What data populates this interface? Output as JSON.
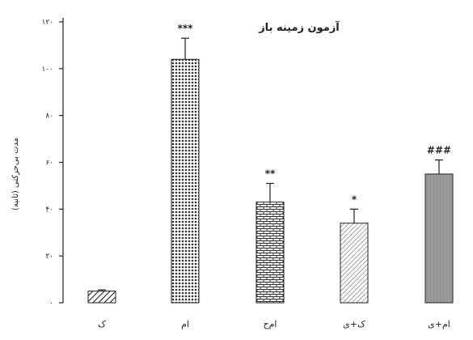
{
  "chart_data": {
    "type": "bar",
    "title": "آزمون زمینه باز",
    "ylabel": "(مدت بی‌حرکتی (ثانیه",
    "ylim": [
      0,
      120
    ],
    "yticks": [
      {
        "value": 0,
        "label": "۰"
      },
      {
        "value": 20,
        "label": "۲۰"
      },
      {
        "value": 40,
        "label": "۴۰"
      },
      {
        "value": 60,
        "label": "۶۰"
      },
      {
        "value": 80,
        "label": "۸۰"
      },
      {
        "value": 100,
        "label": "۱۰۰"
      },
      {
        "value": 120,
        "label": "۱۲۰"
      }
    ],
    "categories": [
      "ک",
      "ام",
      "ام‌ح",
      "ک+ی",
      "ام+ی"
    ],
    "values": [
      5,
      104,
      43,
      34,
      55
    ],
    "errors": [
      0.5,
      9,
      8,
      6,
      6
    ],
    "significance": [
      "",
      "***",
      "**",
      "*",
      "###"
    ],
    "patterns": [
      "diagonal",
      "dots",
      "brick",
      "light-diagonal",
      "solid-gray"
    ]
  }
}
